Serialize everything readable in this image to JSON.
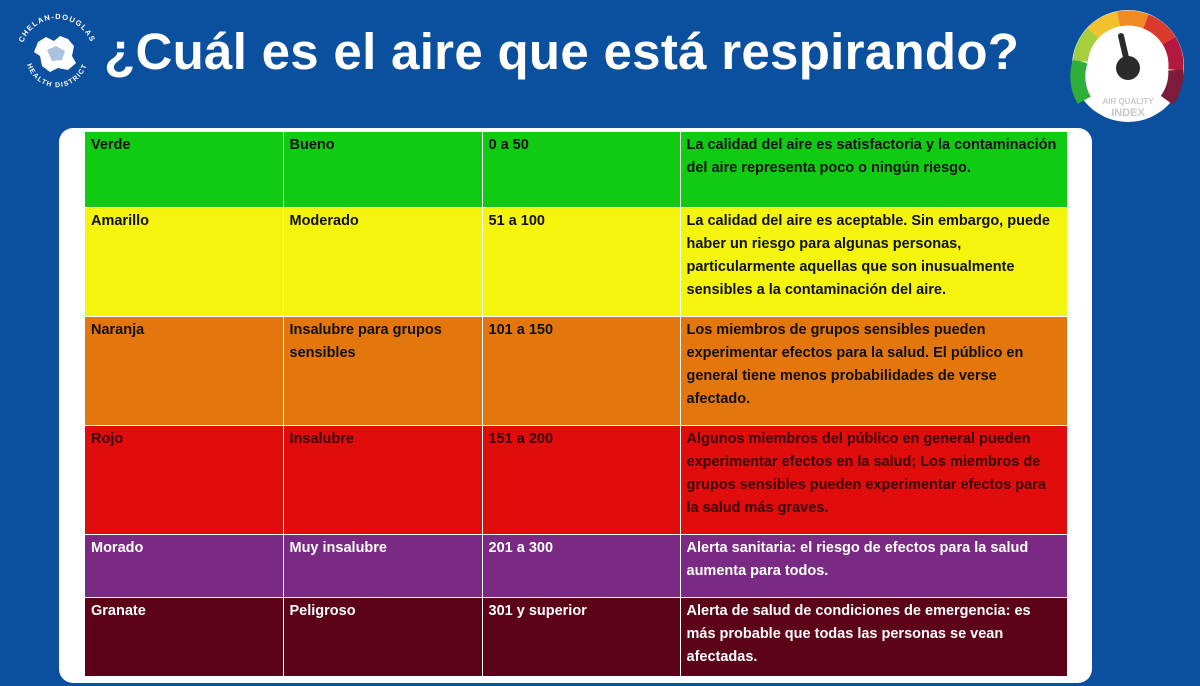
{
  "header": {
    "title": "¿Cuál es el aire que está respirando?",
    "logo": {
      "icon": "chelan-douglas-health-district-logo",
      "text": "CHELAN-DOUGLAS HEALTH DISTRICT"
    },
    "gauge": {
      "icon": "air-quality-index-gauge-icon",
      "text": "AIR QUALITY INDEX"
    }
  },
  "aqi_table": {
    "rows": [
      {
        "color": "Verde",
        "level": "Bueno",
        "range": "0 a 50",
        "description": "La calidad del aire es satisfactoria y la contaminación del aire representa poco o ningún riesgo.",
        "bg": "#0fcc12"
      },
      {
        "color": "Amarillo",
        "level": "Moderado",
        "range": "51 a 100",
        "description": "La calidad del aire es aceptable. Sin embargo, puede haber un riesgo para algunas personas, particularmente aquellas que son inusualmente sensibles a la contaminación del aire.",
        "bg": "#f4f40d"
      },
      {
        "color": "Naranja",
        "level": "Insalubre para grupos sensibles",
        "range": "101 a 150",
        "description": "Los miembros de grupos sensibles pueden experimentar efectos para la salud. El público en general tiene menos probabilidades de verse afectado.",
        "bg": "#e3760c"
      },
      {
        "color": "Rojo",
        "level": "Insalubre",
        "range": "151 a 200",
        "description": "Algunos miembros del público en general pueden experimentar efectos en la salud; Los miembros de grupos sensibles pueden experimentar efectos para la salud más graves.",
        "bg": "#e10d0d"
      },
      {
        "color": "Morado",
        "level": "Muy insalubre",
        "range": "201 a 300",
        "description": "Alerta sanitaria: el riesgo de efectos para la salud aumenta para todos.",
        "bg": "#7a2a83"
      },
      {
        "color": "Granate",
        "level": "Peligroso",
        "range": "301 y superior",
        "description": "Alerta de salud de condiciones de emergencia: es más probable que todas las personas se vean afectadas.",
        "bg": "#5c0219"
      }
    ]
  }
}
